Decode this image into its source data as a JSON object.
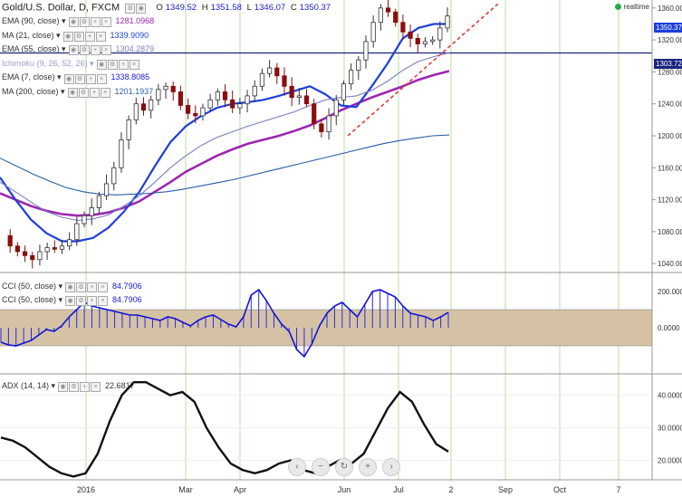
{
  "header": {
    "title": "Gold/U.S. Dollar, D, FXCM",
    "open_label": "O",
    "open": "1349.52",
    "high_label": "H",
    "high": "1351.58",
    "low_label": "L",
    "low": "1346.07",
    "close_label": "C",
    "close": "1350.37"
  },
  "realtime_label": "realtime",
  "indicators": [
    {
      "label": "EMA (90, close)",
      "value": "1281.0968",
      "color": "#9c27b0"
    },
    {
      "label": "MA (21, close)",
      "value": "1339.9090",
      "color": "#1e3fd8"
    },
    {
      "label": "EMA (55, close)",
      "value": "1304.2879",
      "color": "#7b7ec2"
    },
    {
      "label": "Ichimoku (9, 26, 52, 26)",
      "value": "",
      "color": "#8a8fc0"
    },
    {
      "label": "EMA (7, close)",
      "value": "1338.8085",
      "color": "#1b1bdc"
    },
    {
      "label": "MA (200, close)",
      "value": "1201.1937",
      "color": "#2a5ca8"
    }
  ],
  "cci_labels": [
    {
      "label": "CCI (50, close)",
      "value": "84.7906"
    },
    {
      "label": "CCI (50, close)",
      "value": "84.7906"
    }
  ],
  "adx_label": {
    "label": "ADX (14, 14)",
    "value": "22.6817"
  },
  "price_tags": {
    "last": "1350.37",
    "hline": "1303.72"
  },
  "nav_buttons": [
    "‹",
    "−",
    "↻",
    "+",
    "›"
  ],
  "chart_data": {
    "type": "candlestick",
    "x_tick_labels": [
      "2016",
      "Mar",
      "Apr",
      "Jun",
      "Jul",
      "2",
      "Sep",
      "Oct",
      "7"
    ],
    "price_axis": {
      "range": [
        1030,
        1370
      ],
      "ticks": [
        1040,
        1080,
        1120,
        1160,
        1200,
        1240,
        1280,
        1320,
        1360
      ]
    },
    "price_tick_labels": [
      "1040.000",
      "1080.000",
      "1120.000",
      "1160.000",
      "1200.000",
      "1240.000",
      "1280.000",
      "1320.000",
      "1360.000"
    ],
    "close_path": [
      1075,
      1062,
      1055,
      1050,
      1045,
      1055,
      1060,
      1058,
      1062,
      1070,
      1090,
      1100,
      1110,
      1125,
      1140,
      1160,
      1195,
      1220,
      1240,
      1232,
      1245,
      1258,
      1262,
      1255,
      1238,
      1228,
      1225,
      1235,
      1245,
      1255,
      1245,
      1235,
      1240,
      1250,
      1262,
      1278,
      1285,
      1275,
      1262,
      1248,
      1250,
      1240,
      1215,
      1205,
      1225,
      1245,
      1265,
      1282,
      1295,
      1318,
      1342,
      1360,
      1355,
      1342,
      1330,
      1322,
      1315,
      1318,
      1320,
      1335,
      1350
    ],
    "series": [
      {
        "name": "EMA (90, close)",
        "color": "#9c27b0",
        "values": [
          1128,
          1120,
          1112,
          1106,
          1102,
          1100,
          1101,
          1104,
          1110,
          1118,
          1130,
          1142,
          1155,
          1165,
          1175,
          1183,
          1190,
          1195,
          1200,
          1206,
          1213,
          1222,
          1232,
          1240,
          1248,
          1255,
          1262,
          1270,
          1276,
          1281
        ]
      },
      {
        "name": "MA (21, close)",
        "color": "#1e3fd8",
        "values": [
          1148,
          1120,
          1095,
          1078,
          1068,
          1068,
          1072,
          1085,
          1105,
          1130,
          1162,
          1192,
          1212,
          1225,
          1235,
          1240,
          1242,
          1245,
          1250,
          1256,
          1262,
          1252,
          1238,
          1236,
          1262,
          1290,
          1322,
          1335,
          1340,
          1340
        ]
      },
      {
        "name": "EMA (55, close)",
        "color": "#7b7ec2",
        "values": [
          1142,
          1130,
          1117,
          1105,
          1098,
          1094,
          1096,
          1101,
          1112,
          1125,
          1142,
          1160,
          1175,
          1188,
          1198,
          1205,
          1212,
          1218,
          1224,
          1230,
          1238,
          1245,
          1248,
          1250,
          1257,
          1268,
          1282,
          1293,
          1299,
          1304
        ]
      },
      {
        "name": "MA (200, close)",
        "color": "#2a5ca8",
        "values": [
          1172,
          1162,
          1152,
          1143,
          1135,
          1130,
          1127,
          1126,
          1127,
          1128,
          1130,
          1133,
          1137,
          1141,
          1145,
          1150,
          1155,
          1160,
          1165,
          1170,
          1175,
          1180,
          1185,
          1190,
          1194,
          1197,
          1200,
          1201
        ]
      }
    ],
    "trendline": {
      "from": [
        0.51,
        1200
      ],
      "to": [
        0.73,
        1365
      ],
      "color": "#e53935"
    },
    "hline": {
      "value": 1303.72,
      "color": "#1a237e"
    },
    "cci": {
      "range": [
        -250,
        300
      ],
      "ticks_labels": [
        "200.0000",
        "0.0000"
      ],
      "ticks": [
        200,
        0
      ],
      "band": [
        -100,
        100
      ],
      "values": [
        -80,
        -95,
        -100,
        -85,
        -70,
        -40,
        -10,
        -20,
        10,
        60,
        100,
        140,
        120,
        110,
        100,
        90,
        80,
        70,
        70,
        60,
        50,
        40,
        60,
        50,
        30,
        10,
        40,
        60,
        70,
        45,
        20,
        5,
        60,
        180,
        210,
        150,
        80,
        20,
        -20,
        -120,
        -160,
        -90,
        10,
        80,
        120,
        140,
        100,
        60,
        130,
        200,
        210,
        190,
        170,
        120,
        80,
        70,
        60,
        40,
        60,
        84.79
      ]
    },
    "adx": {
      "range": [
        14,
        46
      ],
      "ticks_labels": [
        "40.0000",
        "30.0000",
        "20.0000"
      ],
      "ticks": [
        40,
        30,
        20
      ],
      "values": [
        27,
        26,
        24,
        21,
        18,
        16,
        15,
        16,
        22,
        32,
        40,
        44,
        44,
        42,
        40,
        41,
        38,
        30,
        24,
        19,
        17,
        16,
        17,
        19,
        20,
        17,
        16,
        18,
        20,
        19,
        22,
        29,
        36,
        41,
        38,
        31,
        25,
        22.68
      ]
    }
  }
}
